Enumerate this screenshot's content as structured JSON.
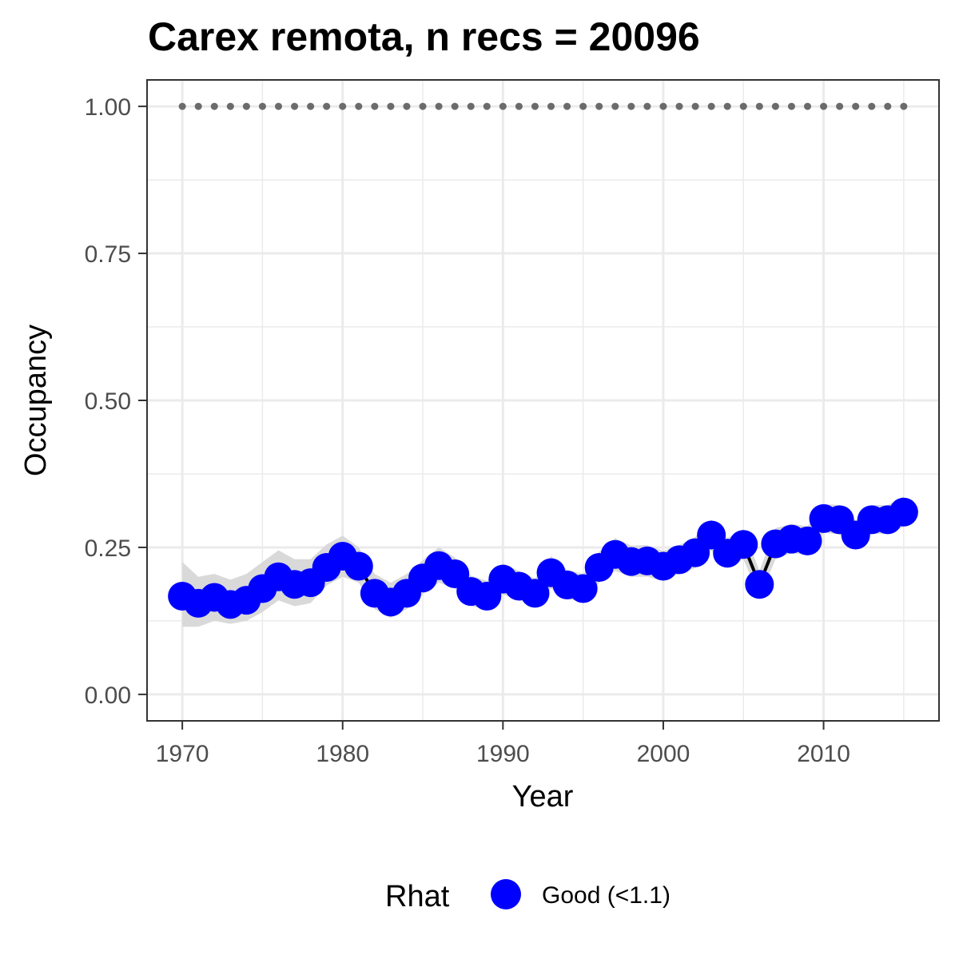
{
  "chart_data": {
    "type": "line",
    "title": "Carex remota, n recs = 20096",
    "xlabel": "Year",
    "ylabel": "Occupancy",
    "xlim": [
      1967.8,
      1917.1
    ],
    "ylim": [
      -0.045,
      1.045
    ],
    "x_ticks": [
      1970,
      1980,
      1990,
      2000,
      2010
    ],
    "x_tick_labels": [
      "1970",
      "1980",
      "1990",
      "2000",
      "2010"
    ],
    "y_ticks": [
      0,
      0.25,
      0.5,
      0.75,
      1.0
    ],
    "y_tick_labels": [
      "0.00",
      "0.25",
      "0.50",
      "0.75",
      "1.00"
    ],
    "grid": true,
    "legend": {
      "title": "Rhat",
      "position": "bottom",
      "entries": [
        {
          "label": "Good (<1.1)",
          "color": "#0000ff"
        }
      ]
    },
    "colors": {
      "points": "#0000ff",
      "line": "#000000",
      "ribbon": "#d9d9d9",
      "reference": "#6b6b6b",
      "grid": "#ebebeb",
      "border": "#333333"
    },
    "x": [
      1970,
      1971,
      1972,
      1973,
      1974,
      1975,
      1976,
      1977,
      1978,
      1979,
      1980,
      1981,
      1982,
      1983,
      1984,
      1985,
      1986,
      1987,
      1988,
      1989,
      1990,
      1991,
      1992,
      1993,
      1994,
      1995,
      1996,
      1997,
      1998,
      1999,
      2000,
      2001,
      2002,
      2003,
      2004,
      2005,
      2006,
      2007,
      2008,
      2009,
      2010,
      2011,
      2012,
      2013,
      2014,
      2015
    ],
    "series": [
      {
        "values": [
          0.167,
          0.155,
          0.165,
          0.153,
          0.16,
          0.18,
          0.2,
          0.187,
          0.19,
          0.216,
          0.235,
          0.218,
          0.172,
          0.157,
          0.172,
          0.198,
          0.219,
          0.205,
          0.175,
          0.167,
          0.196,
          0.184,
          0.172,
          0.207,
          0.186,
          0.18,
          0.216,
          0.238,
          0.226,
          0.227,
          0.218,
          0.229,
          0.241,
          0.271,
          0.24,
          0.255,
          0.187,
          0.256,
          0.264,
          0.261,
          0.299,
          0.297,
          0.271,
          0.297,
          0.297,
          0.31
        ],
        "lower": [
          0.115,
          0.115,
          0.125,
          0.12,
          0.125,
          0.14,
          0.16,
          0.15,
          0.155,
          0.185,
          0.2,
          0.19,
          0.145,
          0.13,
          0.145,
          0.17,
          0.19,
          0.18,
          0.15,
          0.145,
          0.17,
          0.16,
          0.15,
          0.18,
          0.162,
          0.158,
          0.19,
          0.21,
          0.2,
          0.2,
          0.193,
          0.205,
          0.215,
          0.245,
          0.215,
          0.23,
          0.165,
          0.23,
          0.24,
          0.237,
          0.275,
          0.272,
          0.248,
          0.273,
          0.273,
          0.285
        ],
        "upper": [
          0.225,
          0.2,
          0.205,
          0.195,
          0.205,
          0.225,
          0.245,
          0.23,
          0.23,
          0.255,
          0.27,
          0.25,
          0.205,
          0.19,
          0.205,
          0.228,
          0.25,
          0.233,
          0.202,
          0.193,
          0.223,
          0.21,
          0.197,
          0.235,
          0.212,
          0.205,
          0.243,
          0.266,
          0.253,
          0.254,
          0.244,
          0.254,
          0.268,
          0.297,
          0.266,
          0.281,
          0.21,
          0.283,
          0.29,
          0.286,
          0.324,
          0.322,
          0.296,
          0.322,
          0.322,
          0.337
        ]
      },
      {
        "values": [
          1,
          1,
          1,
          1,
          1,
          1,
          1,
          1,
          1,
          1,
          1,
          1,
          1,
          1,
          1,
          1,
          1,
          1,
          1,
          1,
          1,
          1,
          1,
          1,
          1,
          1,
          1,
          1,
          1,
          1,
          1,
          1,
          1,
          1,
          1,
          1,
          1,
          1,
          1,
          1,
          1,
          1,
          1,
          1,
          1,
          1
        ]
      }
    ]
  }
}
